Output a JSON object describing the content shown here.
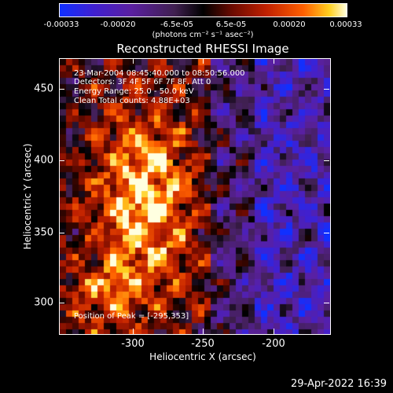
{
  "colorbar": {
    "ticks": [
      "-0.00033",
      "-0.00020",
      "-6.5e-05",
      "6.5e-05",
      "0.00020",
      "0.00033"
    ],
    "units": "(photons cm⁻² s⁻¹ asec⁻²)"
  },
  "title": "Reconstructed RHESSI Image",
  "info": {
    "time_range": "23-Mar-2004 08:45:40.000 to 08:50:56.000",
    "detectors": "Detectors: 3F 4F 5F 6F 7F 8F, Att 0",
    "energy": "Energy Range: 25.0 - 50.0 keV",
    "clean": "Clean    Total counts: 4.88E+03",
    "peak": "Position of Peak = [-295,353]"
  },
  "axes": {
    "x_ticks": [
      "-300",
      "-250",
      "-200"
    ],
    "y_ticks": [
      "450",
      "400",
      "350",
      "300"
    ],
    "xlabel": "Heliocentric X (arcsec)",
    "ylabel": "Heliocentric Y (arcsec)"
  },
  "timestamp": "29-Apr-2022 16:39"
}
